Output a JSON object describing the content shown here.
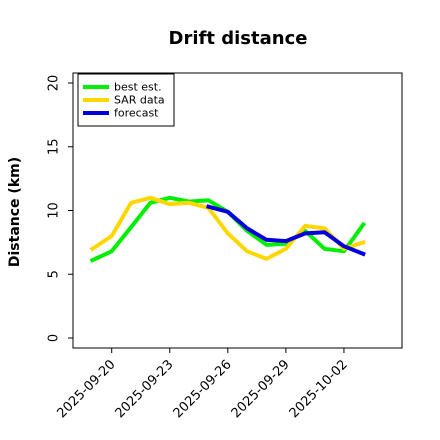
{
  "chart_data": {
    "type": "line",
    "title": "Drift distance",
    "xlabel": "",
    "ylabel": "Distance (km)",
    "ylim": [
      0,
      20
    ],
    "yticks": [
      0,
      5,
      10,
      15,
      20
    ],
    "xticks": [
      "2025-09-20",
      "2025-09-23",
      "2025-09-26",
      "2025-09-29",
      "2025-10-02"
    ],
    "x_start": "2025-09-18",
    "x_end": "2025-10-05",
    "legend": "top-left",
    "grid": false,
    "series": [
      {
        "name": "best est.",
        "color": "#00ee00",
        "points": [
          [
            "2025-09-19",
            6.1
          ],
          [
            "2025-09-20",
            6.8
          ],
          [
            "2025-09-21",
            8.7
          ],
          [
            "2025-09-22",
            10.6
          ],
          [
            "2025-09-23",
            11.0
          ],
          [
            "2025-09-24",
            10.7
          ],
          [
            "2025-09-25",
            10.8
          ],
          [
            "2025-09-26",
            9.9
          ],
          [
            "2025-09-27",
            8.4
          ],
          [
            "2025-09-28",
            7.3
          ],
          [
            "2025-09-29",
            7.4
          ],
          [
            "2025-09-30",
            8.4
          ],
          [
            "2025-10-01",
            7.0
          ],
          [
            "2025-10-02",
            6.8
          ],
          [
            "2025-10-03",
            8.9
          ]
        ]
      },
      {
        "name": "SAR data",
        "color": "#ffd700",
        "points": [
          [
            "2025-09-19",
            7.0
          ],
          [
            "2025-09-20",
            8.0
          ],
          [
            "2025-09-21",
            10.6
          ],
          [
            "2025-09-22",
            11.0
          ],
          [
            "2025-09-23",
            10.5
          ],
          [
            "2025-09-24",
            10.6
          ],
          [
            "2025-09-25",
            10.2
          ],
          [
            "2025-09-26",
            8.2
          ],
          [
            "2025-09-27",
            6.8
          ],
          [
            "2025-09-28",
            6.2
          ],
          [
            "2025-09-29",
            7.0
          ],
          [
            "2025-09-30",
            8.8
          ],
          [
            "2025-10-01",
            8.6
          ],
          [
            "2025-10-02",
            7.0
          ],
          [
            "2025-10-03",
            7.5
          ]
        ]
      },
      {
        "name": "forecast",
        "color": "#0000dd",
        "points": [
          [
            "2025-09-25",
            10.3
          ],
          [
            "2025-09-26",
            9.9
          ],
          [
            "2025-09-27",
            8.6
          ],
          [
            "2025-09-28",
            7.7
          ],
          [
            "2025-09-29",
            7.6
          ],
          [
            "2025-09-30",
            8.2
          ],
          [
            "2025-10-01",
            8.3
          ],
          [
            "2025-10-02",
            7.2
          ],
          [
            "2025-10-03",
            6.6
          ]
        ]
      }
    ]
  }
}
